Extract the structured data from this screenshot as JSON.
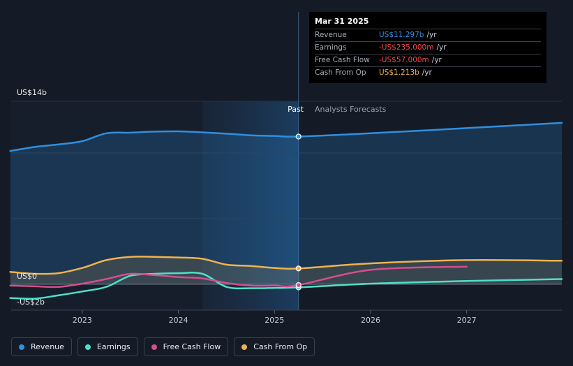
{
  "tooltip": {
    "date": "Mar 31 2025",
    "rows": [
      {
        "label": "Revenue",
        "value": "US$11.297b",
        "unit": "/yr",
        "color": "#2f8fe0"
      },
      {
        "label": "Earnings",
        "value": "-US$235.000m",
        "unit": "/yr",
        "color": "#f0484e"
      },
      {
        "label": "Free Cash Flow",
        "value": "-US$57.000m",
        "unit": "/yr",
        "color": "#f0484e"
      },
      {
        "label": "Cash From Op",
        "value": "US$1.213b",
        "unit": "/yr",
        "color": "#f0b24f"
      }
    ]
  },
  "legend": [
    {
      "label": "Revenue",
      "color": "#2f8fe0"
    },
    {
      "label": "Earnings",
      "color": "#4ee0c8"
    },
    {
      "label": "Free Cash Flow",
      "color": "#d44e8e"
    },
    {
      "label": "Cash From Op",
      "color": "#f0b24f"
    }
  ],
  "chart_data": {
    "type": "line",
    "y_tick_labels": [
      "US$14b",
      "US$0",
      "-US$2b"
    ],
    "x_tick_labels": [
      "2023",
      "2024",
      "2025",
      "2026",
      "2027"
    ],
    "segments": {
      "past": "Past",
      "forecast": "Analysts Forecasts"
    },
    "ylim": [
      -2,
      14
    ],
    "xlim": [
      2022.26,
      2027.99
    ],
    "divider_x": 2025.25,
    "grid": true,
    "series": [
      {
        "name": "Revenue",
        "color": "#2f8fe0",
        "x": [
          2022.25,
          2022.5,
          2022.75,
          2023.0,
          2023.25,
          2023.5,
          2023.75,
          2024.0,
          2024.25,
          2024.5,
          2024.75,
          2025.0,
          2025.25,
          2026.0,
          2027.0,
          2028.0
        ],
        "y": [
          10.2,
          10.5,
          10.7,
          10.95,
          11.55,
          11.6,
          11.68,
          11.7,
          11.62,
          11.52,
          11.4,
          11.35,
          11.3,
          11.55,
          11.95,
          12.35
        ]
      },
      {
        "name": "Earnings",
        "color": "#4ee0c8",
        "x": [
          2022.25,
          2022.5,
          2022.75,
          2023.0,
          2023.25,
          2023.5,
          2023.75,
          2024.0,
          2024.25,
          2024.5,
          2024.75,
          2025.0,
          2025.25,
          2026.0,
          2027.0,
          2028.0
        ],
        "y": [
          -1.05,
          -1.1,
          -0.85,
          -0.55,
          -0.2,
          0.65,
          0.8,
          0.85,
          0.8,
          -0.2,
          -0.3,
          -0.28,
          -0.24,
          0.05,
          0.25,
          0.4
        ]
      },
      {
        "name": "Free Cash Flow",
        "color": "#d44e8e",
        "x": [
          2022.25,
          2022.5,
          2022.75,
          2023.0,
          2023.25,
          2023.5,
          2023.75,
          2024.0,
          2024.25,
          2024.5,
          2024.75,
          2025.0,
          2025.25,
          2026.0,
          2027.0
        ],
        "y": [
          -0.1,
          -0.15,
          -0.2,
          0.05,
          0.4,
          0.8,
          0.7,
          0.55,
          0.45,
          0.1,
          -0.1,
          -0.1,
          -0.06,
          1.1,
          1.35
        ]
      },
      {
        "name": "Cash From Op",
        "color": "#f0b24f",
        "x": [
          2022.25,
          2022.5,
          2022.75,
          2023.0,
          2023.25,
          2023.5,
          2023.75,
          2024.0,
          2024.25,
          2024.5,
          2024.75,
          2025.0,
          2025.25,
          2026.0,
          2027.0,
          2028.0
        ],
        "y": [
          0.95,
          0.8,
          0.85,
          1.25,
          1.85,
          2.1,
          2.1,
          2.05,
          1.95,
          1.5,
          1.4,
          1.25,
          1.21,
          1.6,
          1.85,
          1.8
        ]
      }
    ]
  }
}
